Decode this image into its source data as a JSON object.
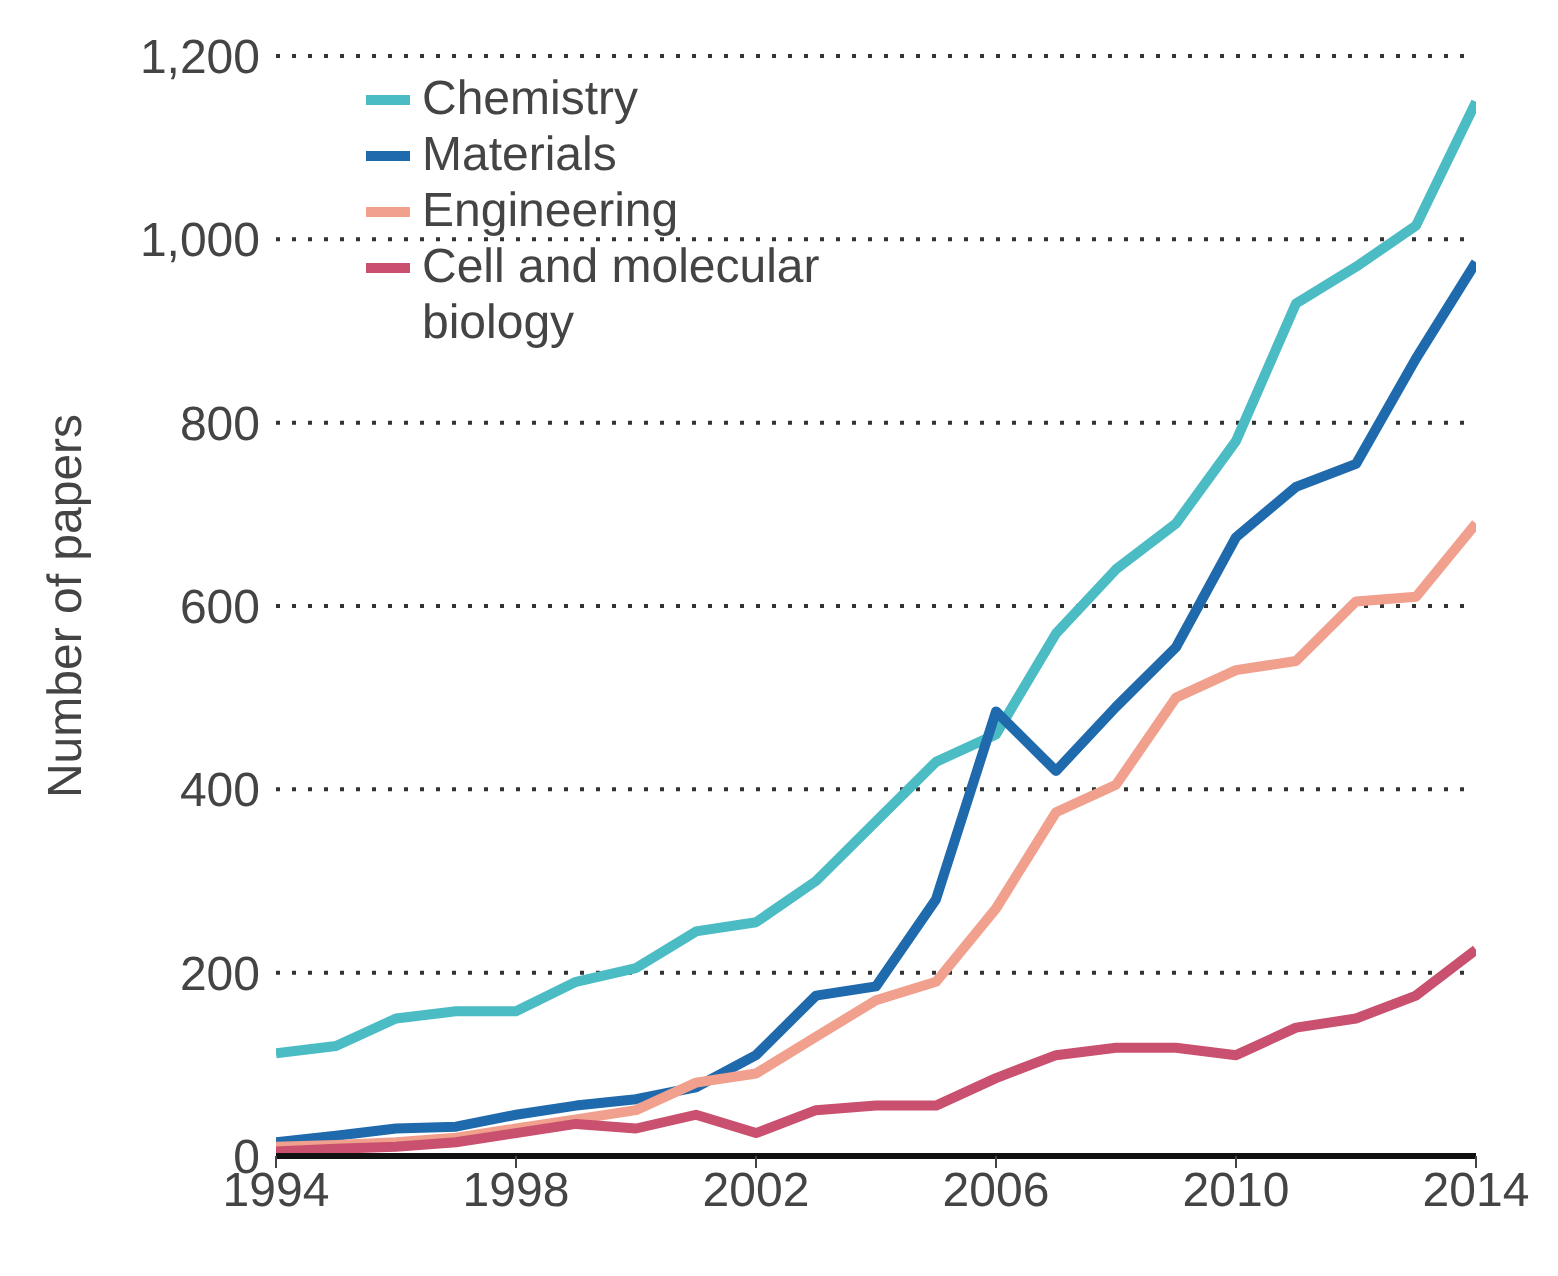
{
  "chart_data": {
    "type": "line",
    "ylabel": "Number of papers",
    "x": [
      1994,
      1995,
      1996,
      1997,
      1998,
      1999,
      2000,
      2001,
      2002,
      2003,
      2004,
      2005,
      2006,
      2007,
      2008,
      2009,
      2010,
      2011,
      2012,
      2013,
      2014
    ],
    "series": [
      {
        "name": "Chemistry",
        "color": "#4bbcc4",
        "values": [
          112,
          120,
          150,
          158,
          158,
          190,
          205,
          245,
          255,
          300,
          365,
          430,
          460,
          570,
          640,
          690,
          780,
          930,
          970,
          1015,
          1150
        ]
      },
      {
        "name": "Materials",
        "color": "#1f6aad",
        "values": [
          15,
          22,
          30,
          32,
          45,
          55,
          62,
          75,
          110,
          175,
          185,
          280,
          485,
          420,
          490,
          555,
          675,
          730,
          755,
          870,
          975
        ]
      },
      {
        "name": "Engineering",
        "color": "#f0a08c",
        "values": [
          10,
          12,
          15,
          20,
          30,
          40,
          50,
          80,
          90,
          130,
          170,
          190,
          270,
          375,
          405,
          500,
          530,
          540,
          605,
          610,
          690
        ]
      },
      {
        "name": "Cell and molecular biology",
        "color": "#c9506e",
        "values": [
          5,
          8,
          10,
          15,
          25,
          35,
          30,
          45,
          25,
          50,
          55,
          55,
          85,
          110,
          118,
          118,
          110,
          140,
          150,
          175,
          225
        ]
      }
    ],
    "xlim": [
      1994,
      2014
    ],
    "xticks": [
      1994,
      1998,
      2002,
      2006,
      2010,
      2014
    ],
    "ylim": [
      0,
      1200
    ],
    "yticks": [
      0,
      {
        "value": 200,
        "label": "200"
      },
      {
        "value": 400,
        "label": "400"
      },
      {
        "value": 600,
        "label": "600"
      },
      {
        "value": 800,
        "label": "800"
      },
      {
        "value": 1000,
        "label": "1,000"
      },
      {
        "value": 1200,
        "label": "1,200"
      }
    ],
    "grid": "y",
    "legend": "top left",
    "marker": "none",
    "line_style": "solid"
  }
}
